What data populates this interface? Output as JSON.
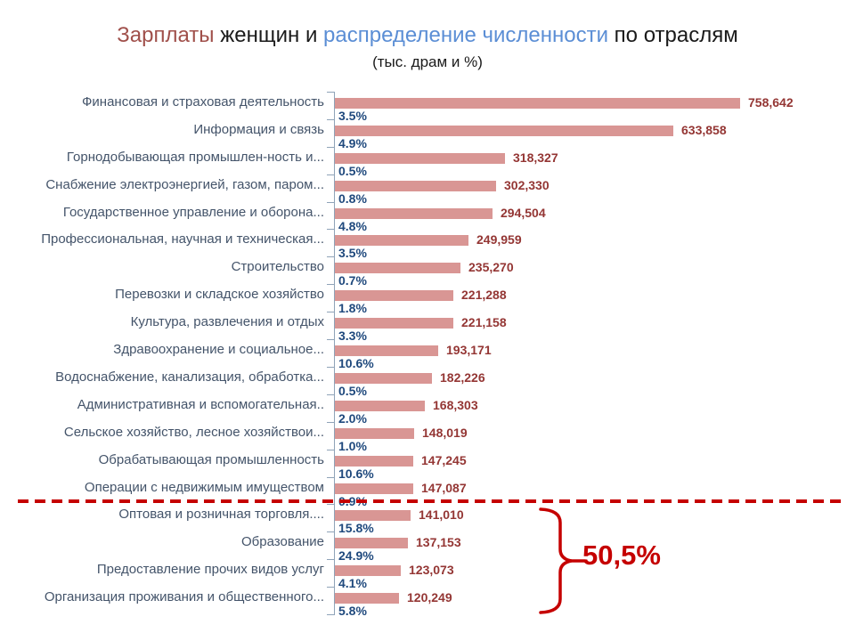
{
  "title": {
    "part_salaries": "Зарплаты",
    "part_women": " женщин и ",
    "part_distribution": "распределение численности",
    "part_industries": " по отраслям",
    "subtitle": "(тыс. драм и %)"
  },
  "colors": {
    "bar": "#D99694",
    "value_label": "#943634",
    "percent_label": "#1F497D",
    "category_label": "#44546A",
    "title_red": "#A0504B",
    "title_blue": "#5B8ED5",
    "annotation_red": "#C50000",
    "axis": "#8FA3B8"
  },
  "chart_data": {
    "type": "bar",
    "orientation": "horizontal",
    "title": "Зарплаты женщин и распределение численности по отраслям",
    "subtitle": "(тыс. драм и %)",
    "x_max": 758642,
    "grid": false,
    "categories": [
      "Финансовая и страховая деятельность",
      "Информация и связь",
      "Горнодобывающая промышлен-ность и...",
      "Снабжение электроэнергией, газом, паром...",
      "Государственное управление и оборона...",
      "Профессиональная, научная и техническая...",
      "Строительство",
      "Перевозки и складское хозяйство",
      "Культура, развлечения и отдых",
      "Здравоохранение и социальное...",
      "Водоснабжение, канализация, обработка...",
      "Административная и вспомогательная..",
      "Сельское хозяйство, лесное хозяйствои...",
      "Обрабатывающая промышленность",
      "Операции с недвижимым имуществом",
      "Оптовая и розничная торговля....",
      "Образование",
      "Предоставление прочих видов услуг",
      "Организация проживания и общественного..."
    ],
    "series": [
      {
        "name": "salary_thousand_dram",
        "values": [
          758642,
          633858,
          318327,
          302330,
          294504,
          249959,
          235270,
          221288,
          221158,
          193171,
          182226,
          168303,
          148019,
          147245,
          147087,
          141010,
          137153,
          123073,
          120249
        ],
        "labels": [
          "758,642",
          "633,858",
          "318,327",
          "302,330",
          "294,504",
          "249,959",
          "235,270",
          "221,288",
          "221,158",
          "193,171",
          "182,226",
          "168,303",
          "148,019",
          "147,245",
          "147,087",
          "141,010",
          "137,153",
          "123,073",
          "120,249"
        ]
      },
      {
        "name": "share_percent",
        "values": [
          3.5,
          4.9,
          0.5,
          0.8,
          4.8,
          3.5,
          0.7,
          1.8,
          3.3,
          10.6,
          0.5,
          2.0,
          1.0,
          10.6,
          0.9,
          15.8,
          24.9,
          4.1,
          5.8
        ],
        "labels": [
          "3.5%",
          "4.9%",
          "0.5%",
          "0.8%",
          "4.8%",
          "3.5%",
          "0.7%",
          "1.8%",
          "3.3%",
          "10.6%",
          "0.5%",
          "2.0%",
          "1.0%",
          "10.6%",
          "0.9%",
          "15.8%",
          "24.9%",
          "4.1%",
          "5.8%"
        ]
      }
    ],
    "separator_after_index": 14,
    "annotation": {
      "label": "50,5%",
      "applies_to": [
        "Оптовая и розничная торговля....",
        "Образование",
        "Предоставление прочих видов услуг",
        "Организация проживания и общественного..."
      ]
    }
  }
}
